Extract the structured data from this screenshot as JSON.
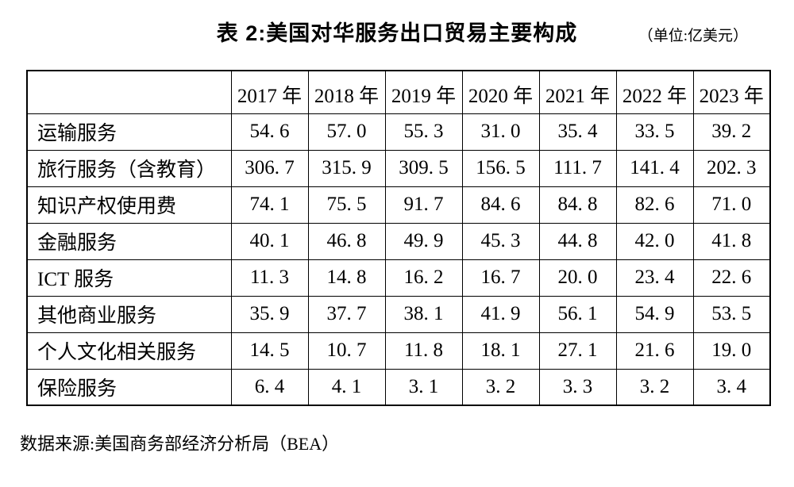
{
  "title": "表 2:美国对华服务出口贸易主要构成",
  "unit": "（单位:亿美元）",
  "table": {
    "corner": "",
    "columns": [
      "2017 年",
      "2018 年",
      "2019 年",
      "2020 年",
      "2021 年",
      "2022 年",
      "2023 年"
    ],
    "rows": [
      {
        "label": "运输服务",
        "values": [
          "54. 6",
          "57. 0",
          "55. 3",
          "31. 0",
          "35. 4",
          "33. 5",
          "39. 2"
        ]
      },
      {
        "label": "旅行服务（含教育）",
        "values": [
          "306. 7",
          "315. 9",
          "309. 5",
          "156. 5",
          "111. 7",
          "141. 4",
          "202. 3"
        ]
      },
      {
        "label": "知识产权使用费",
        "values": [
          "74. 1",
          "75. 5",
          "91. 7",
          "84. 6",
          "84. 8",
          "82. 6",
          "71. 0"
        ]
      },
      {
        "label": "金融服务",
        "values": [
          "40. 1",
          "46. 8",
          "49. 9",
          "45. 3",
          "44. 8",
          "42. 0",
          "41. 8"
        ]
      },
      {
        "label": "ICT 服务",
        "values": [
          "11. 3",
          "14. 8",
          "16. 2",
          "16. 7",
          "20. 0",
          "23. 4",
          "22. 6"
        ]
      },
      {
        "label": "其他商业服务",
        "values": [
          "35. 9",
          "37. 7",
          "38. 1",
          "41. 9",
          "56. 1",
          "54. 9",
          "53. 5"
        ]
      },
      {
        "label": "个人文化相关服务",
        "values": [
          "14. 5",
          "10. 7",
          "11. 8",
          "18. 1",
          "27. 1",
          "21. 6",
          "19. 0"
        ]
      },
      {
        "label": "保险服务",
        "values": [
          "6. 4",
          "4. 1",
          "3. 1",
          "3. 2",
          "3. 3",
          "3. 2",
          "3. 4"
        ]
      }
    ]
  },
  "source": "数据来源:美国商务部经济分析局（BEA）"
}
